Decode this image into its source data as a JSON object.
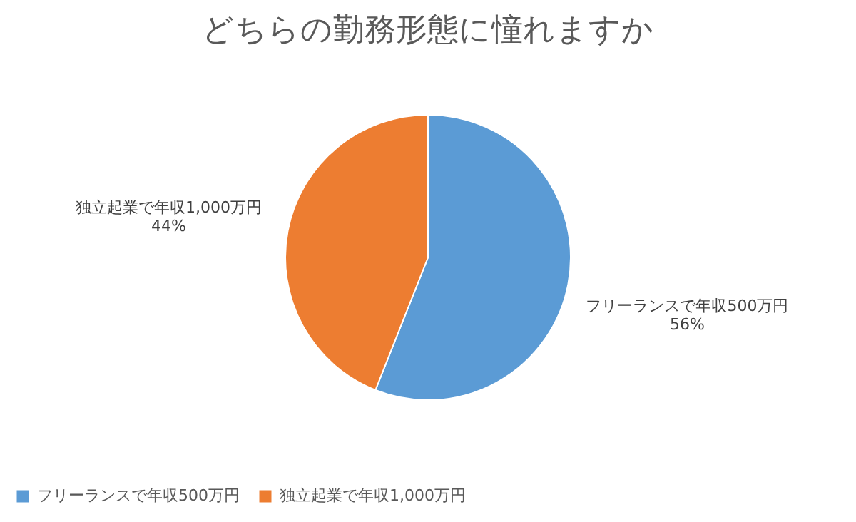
{
  "chart_data": {
    "type": "pie",
    "title": "どちらの勤務形態に憧れますか",
    "categories": [
      "フリーランスで年収500万円",
      "独立起業で年収1,000万円"
    ],
    "values": [
      56,
      44
    ],
    "value_labels": [
      "56%",
      "44%"
    ],
    "colors": [
      "#5b9bd5",
      "#ed7d31"
    ],
    "legend": "bottom"
  }
}
